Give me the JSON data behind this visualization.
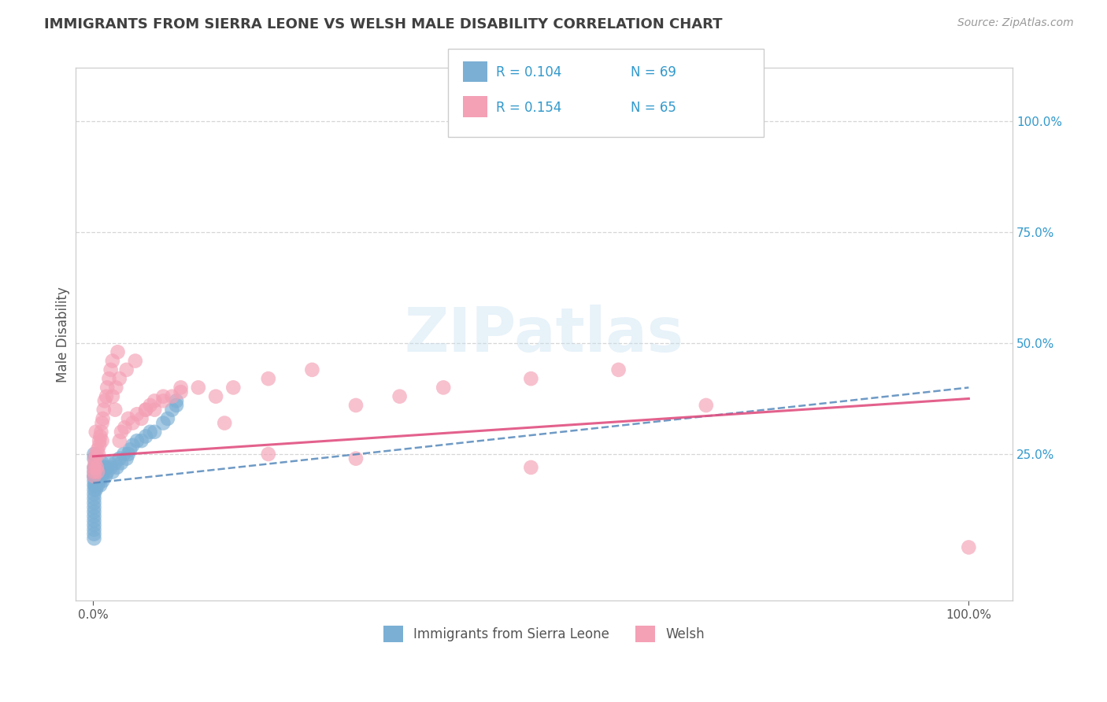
{
  "title": "IMMIGRANTS FROM SIERRA LEONE VS WELSH MALE DISABILITY CORRELATION CHART",
  "source": "Source: ZipAtlas.com",
  "ylabel": "Male Disability",
  "xlim": [
    0.0,
    1.0
  ],
  "ylim": [
    -0.08,
    1.12
  ],
  "ytick_positions": [
    0.0,
    0.25,
    0.5,
    0.75,
    1.0
  ],
  "ytick_labels": [
    "",
    "25.0%",
    "50.0%",
    "75.0%",
    "100.0%"
  ],
  "xtick_positions": [
    0.0,
    1.0
  ],
  "xtick_labels": [
    "0.0%",
    "100.0%"
  ],
  "legend_R1": "R = 0.104",
  "legend_N1": "N = 69",
  "legend_R2": "R = 0.154",
  "legend_N2": "N = 65",
  "legend_label1": "Immigrants from Sierra Leone",
  "legend_label2": "Welsh",
  "color_blue": "#7bafd4",
  "color_pink": "#f4a0b5",
  "color_blue_line": "#5588bb",
  "color_pink_line": "#e05080",
  "color_text_blue": "#3399cc",
  "color_title": "#404040",
  "watermark": "ZIPatlas",
  "background_color": "#ffffff",
  "grid_color": "#cccccc",
  "sierra_leone_x": [
    0.001,
    0.001,
    0.001,
    0.001,
    0.001,
    0.001,
    0.001,
    0.001,
    0.001,
    0.001,
    0.001,
    0.001,
    0.001,
    0.001,
    0.001,
    0.001,
    0.001,
    0.001,
    0.001,
    0.001,
    0.002,
    0.002,
    0.002,
    0.003,
    0.003,
    0.003,
    0.004,
    0.004,
    0.004,
    0.005,
    0.005,
    0.005,
    0.006,
    0.006,
    0.007,
    0.007,
    0.008,
    0.008,
    0.009,
    0.01,
    0.01,
    0.011,
    0.012,
    0.013,
    0.014,
    0.015,
    0.016,
    0.018,
    0.02,
    0.022,
    0.025,
    0.027,
    0.03,
    0.032,
    0.035,
    0.038,
    0.04,
    0.042,
    0.045,
    0.05,
    0.055,
    0.06,
    0.065,
    0.07,
    0.08,
    0.085,
    0.09,
    0.095,
    0.095
  ],
  "sierra_leone_y": [
    0.2,
    0.19,
    0.18,
    0.17,
    0.16,
    0.15,
    0.14,
    0.13,
    0.22,
    0.21,
    0.12,
    0.11,
    0.1,
    0.09,
    0.08,
    0.24,
    0.25,
    0.07,
    0.06,
    0.2,
    0.22,
    0.2,
    0.18,
    0.19,
    0.21,
    0.17,
    0.22,
    0.2,
    0.19,
    0.23,
    0.21,
    0.18,
    0.22,
    0.2,
    0.19,
    0.21,
    0.22,
    0.18,
    0.2,
    0.22,
    0.23,
    0.19,
    0.21,
    0.22,
    0.2,
    0.22,
    0.21,
    0.23,
    0.22,
    0.21,
    0.23,
    0.22,
    0.24,
    0.23,
    0.25,
    0.24,
    0.25,
    0.26,
    0.27,
    0.28,
    0.28,
    0.29,
    0.3,
    0.3,
    0.32,
    0.33,
    0.35,
    0.36,
    0.37
  ],
  "welsh_x": [
    0.001,
    0.001,
    0.001,
    0.002,
    0.002,
    0.003,
    0.003,
    0.004,
    0.005,
    0.005,
    0.006,
    0.007,
    0.007,
    0.008,
    0.009,
    0.01,
    0.01,
    0.011,
    0.012,
    0.013,
    0.015,
    0.016,
    0.018,
    0.02,
    0.022,
    0.025,
    0.028,
    0.03,
    0.032,
    0.036,
    0.04,
    0.045,
    0.05,
    0.055,
    0.06,
    0.065,
    0.07,
    0.08,
    0.09,
    0.1,
    0.12,
    0.14,
    0.16,
    0.2,
    0.25,
    0.3,
    0.35,
    0.4,
    0.5,
    0.6,
    0.7,
    0.022,
    0.026,
    0.03,
    0.038,
    0.048,
    0.06,
    0.07,
    0.08,
    0.1,
    0.15,
    0.2,
    0.3,
    0.5,
    1.0
  ],
  "welsh_y": [
    0.22,
    0.21,
    0.2,
    0.24,
    0.23,
    0.3,
    0.25,
    0.22,
    0.21,
    0.26,
    0.25,
    0.27,
    0.28,
    0.29,
    0.3,
    0.32,
    0.28,
    0.33,
    0.35,
    0.37,
    0.38,
    0.4,
    0.42,
    0.44,
    0.46,
    0.35,
    0.48,
    0.28,
    0.3,
    0.31,
    0.33,
    0.32,
    0.34,
    0.33,
    0.35,
    0.36,
    0.35,
    0.37,
    0.38,
    0.39,
    0.4,
    0.38,
    0.4,
    0.42,
    0.44,
    0.36,
    0.38,
    0.4,
    0.42,
    0.44,
    0.36,
    0.38,
    0.4,
    0.42,
    0.44,
    0.46,
    0.35,
    0.37,
    0.38,
    0.4,
    0.32,
    0.25,
    0.24,
    0.22,
    0.04
  ],
  "sl_trend_x": [
    0.0,
    1.0
  ],
  "sl_trend_y": [
    0.185,
    0.4
  ],
  "welsh_trend_x": [
    0.0,
    1.0
  ],
  "welsh_trend_y": [
    0.245,
    0.375
  ]
}
